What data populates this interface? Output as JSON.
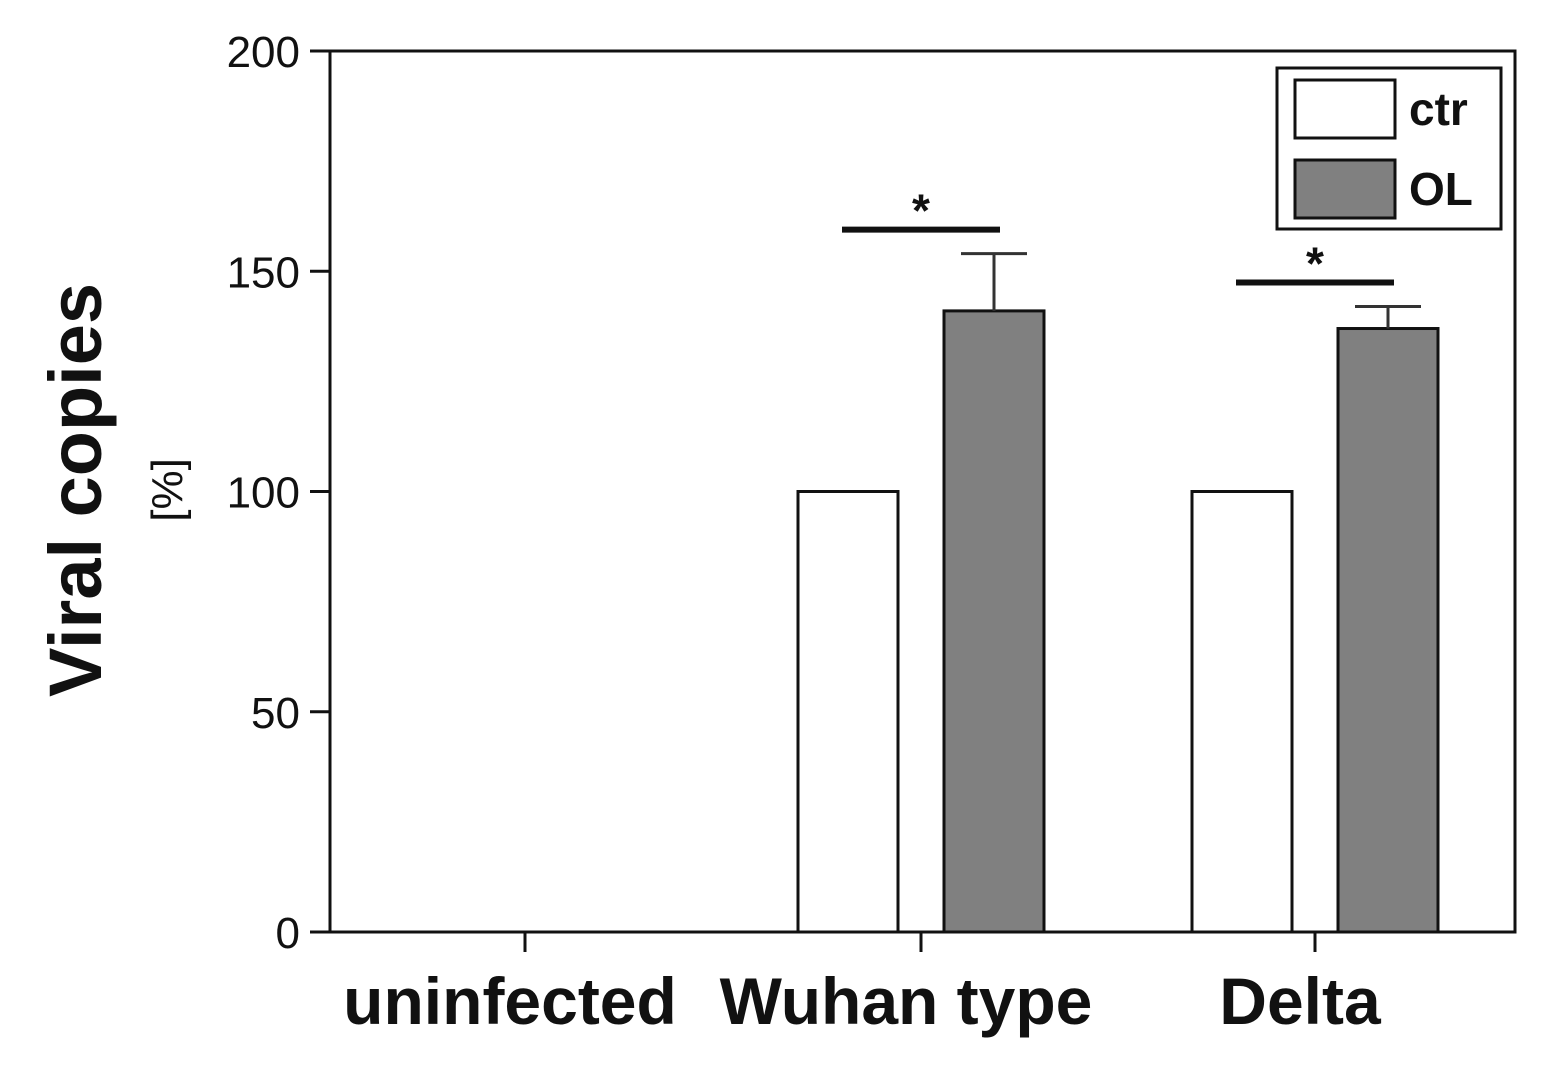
{
  "chart_data": {
    "type": "bar",
    "title": "",
    "ylabel": "Viral copies",
    "ylabel_unit": "[%]",
    "xlabel": "",
    "ylim": [
      0,
      200
    ],
    "yticks": [
      "0",
      "50",
      "100",
      "150",
      "200"
    ],
    "categories": [
      "uninfected",
      "Wuhan type",
      "Delta"
    ],
    "series": [
      {
        "name": "ctr",
        "color": "#ffffff",
        "values": [
          0,
          100,
          100
        ]
      },
      {
        "name": "OL",
        "color": "#808080",
        "values": [
          0,
          141,
          137
        ],
        "error": [
          0,
          13,
          5
        ]
      }
    ],
    "significance": [
      {
        "category": "Wuhan type",
        "label": "*"
      },
      {
        "category": "Delta",
        "label": "*"
      }
    ],
    "legend": {
      "position": "top-right"
    },
    "grid": false
  }
}
